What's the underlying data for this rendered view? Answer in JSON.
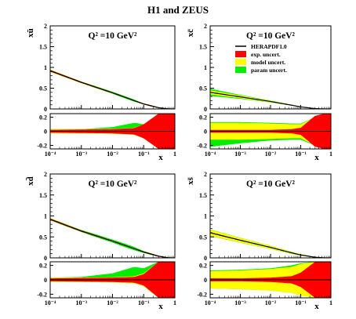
{
  "figure_title": "H1 and ZEUS",
  "legend": [
    {
      "label": "HERAPDF1.0",
      "kind": "line",
      "color": "#000000"
    },
    {
      "label": "exp. uncert.",
      "kind": "box",
      "color": "#ff0000"
    },
    {
      "label": "model uncert.",
      "kind": "box",
      "color": "#ffff00"
    },
    {
      "label": "param uncert.",
      "kind": "box",
      "color": "#00ee00"
    }
  ],
  "colors": {
    "exp": "#ff0000",
    "model": "#ffff00",
    "param": "#00ee00",
    "central": "#000000"
  },
  "chart_data": [
    {
      "type": "area",
      "panel": "xubar",
      "ylabel": "xū",
      "q2_label": "Q² =10 GeV²",
      "xlabel": "x",
      "xscale": "log",
      "xlim": [
        0.0001,
        1
      ],
      "ylim_main": [
        0,
        2
      ],
      "yticks_main": [
        "0",
        "0.5",
        "1",
        "1.5",
        "2"
      ],
      "ylim_ratio": [
        -0.25,
        0.25
      ],
      "yticks_ratio": [
        "0.2",
        "0",
        "-0.2"
      ],
      "xticks": [
        "10⁻⁴",
        "10⁻³",
        "10⁻²",
        "10⁻¹",
        "1"
      ],
      "x": [
        0.0001,
        0.001,
        0.01,
        0.05,
        0.1,
        0.3,
        0.6,
        1
      ],
      "central": [
        0.92,
        0.64,
        0.39,
        0.2,
        0.12,
        0.03,
        0.003,
        0
      ],
      "ratio_exp": [
        0.02,
        0.025,
        0.03,
        0.045,
        0.1,
        0.25,
        0.25,
        0.25
      ],
      "ratio_model": [
        0.03,
        0.03,
        0.035,
        0.05,
        0.1,
        0.25,
        0.25,
        0.25
      ],
      "ratio_param_up": [
        0.03,
        0.03,
        0.06,
        0.12,
        0.1,
        0.25,
        0.25,
        0.25
      ],
      "ratio_param_down": [
        0.03,
        0.03,
        0.035,
        0.05,
        0.1,
        0.25,
        0.25,
        0.25
      ]
    },
    {
      "type": "area",
      "panel": "xcbar",
      "ylabel": "xc̄",
      "q2_label": "Q² =10 GeV²",
      "xlabel": "x",
      "xscale": "log",
      "xlim": [
        0.0001,
        1
      ],
      "ylim_main": [
        0,
        2
      ],
      "yticks_main": [
        "0",
        "0.5",
        "1",
        "1.5",
        "2"
      ],
      "ylim_ratio": [
        -0.25,
        0.25
      ],
      "yticks_ratio": [
        "0.2",
        "0",
        "-0.2"
      ],
      "xticks": [
        "10⁻⁴",
        "10⁻³",
        "10⁻²",
        "10⁻¹",
        "1"
      ],
      "x": [
        0.0001,
        0.001,
        0.01,
        0.05,
        0.1,
        0.3,
        0.6,
        1
      ],
      "central": [
        0.4,
        0.29,
        0.18,
        0.09,
        0.05,
        0.008,
        0.001,
        0
      ],
      "ratio_exp": [
        0.02,
        0.02,
        0.02,
        0.03,
        0.05,
        0.22,
        0.25,
        0.25
      ],
      "ratio_model": [
        0.12,
        0.12,
        0.11,
        0.1,
        0.1,
        0.2,
        0.2,
        0.2
      ],
      "ratio_param_up": [
        0.13,
        0.13,
        0.12,
        0.11,
        0.11,
        0.2,
        0.2,
        0.2
      ],
      "ratio_param_down": [
        0.22,
        0.17,
        0.13,
        0.12,
        0.12,
        0.2,
        0.2,
        0.2
      ]
    },
    {
      "type": "area",
      "panel": "xdbar",
      "ylabel": "xd̄",
      "q2_label": "Q² =10 GeV²",
      "xlabel": "x",
      "xscale": "log",
      "xlim": [
        0.0001,
        1
      ],
      "ylim_main": [
        0,
        2
      ],
      "yticks_main": [
        "0",
        "0.5",
        "1",
        "1.5",
        "2"
      ],
      "ylim_ratio": [
        -0.25,
        0.25
      ],
      "yticks_ratio": [
        "0.2",
        "0",
        "-0.2"
      ],
      "xticks": [
        "10⁻⁴",
        "10⁻³",
        "10⁻²",
        "10⁻¹",
        "1"
      ],
      "x": [
        0.0001,
        0.001,
        0.01,
        0.05,
        0.1,
        0.3,
        0.6,
        1
      ],
      "central": [
        0.92,
        0.64,
        0.4,
        0.22,
        0.14,
        0.04,
        0.005,
        0
      ],
      "ratio_exp": [
        0.02,
        0.025,
        0.03,
        0.04,
        0.08,
        0.25,
        0.25,
        0.25
      ],
      "ratio_model": [
        0.03,
        0.03,
        0.035,
        0.05,
        0.09,
        0.25,
        0.25,
        0.25
      ],
      "ratio_param_up": [
        0.03,
        0.04,
        0.09,
        0.18,
        0.16,
        0.25,
        0.25,
        0.25
      ],
      "ratio_param_down": [
        0.03,
        0.03,
        0.035,
        0.05,
        0.09,
        0.25,
        0.25,
        0.25
      ]
    },
    {
      "type": "area",
      "panel": "xsbar",
      "ylabel": "xs̄",
      "q2_label": "Q² =10 GeV²",
      "xlabel": "x",
      "xscale": "log",
      "xlim": [
        0.0001,
        1
      ],
      "ylim_main": [
        0,
        2
      ],
      "yticks_main": [
        "0",
        "0.5",
        "1",
        "1.5",
        "2"
      ],
      "ylim_ratio": [
        -0.25,
        0.25
      ],
      "yticks_ratio": [
        "0.2",
        "0",
        "-0.2"
      ],
      "xticks": [
        "10⁻⁴",
        "10⁻³",
        "10⁻²",
        "10⁻¹",
        "1"
      ],
      "x": [
        0.0001,
        0.001,
        0.01,
        0.05,
        0.1,
        0.3,
        0.6,
        1
      ],
      "central": [
        0.6,
        0.42,
        0.25,
        0.12,
        0.07,
        0.015,
        0.002,
        0
      ],
      "ratio_exp": [
        0.02,
        0.02,
        0.03,
        0.05,
        0.1,
        0.25,
        0.25,
        0.25
      ],
      "ratio_model": [
        0.12,
        0.13,
        0.15,
        0.18,
        0.22,
        0.25,
        0.25,
        0.25
      ],
      "ratio_param_up": [
        0.13,
        0.14,
        0.16,
        0.2,
        0.23,
        0.25,
        0.25,
        0.25
      ],
      "ratio_param_down": [
        0.12,
        0.13,
        0.15,
        0.18,
        0.22,
        0.25,
        0.25,
        0.25
      ]
    }
  ]
}
